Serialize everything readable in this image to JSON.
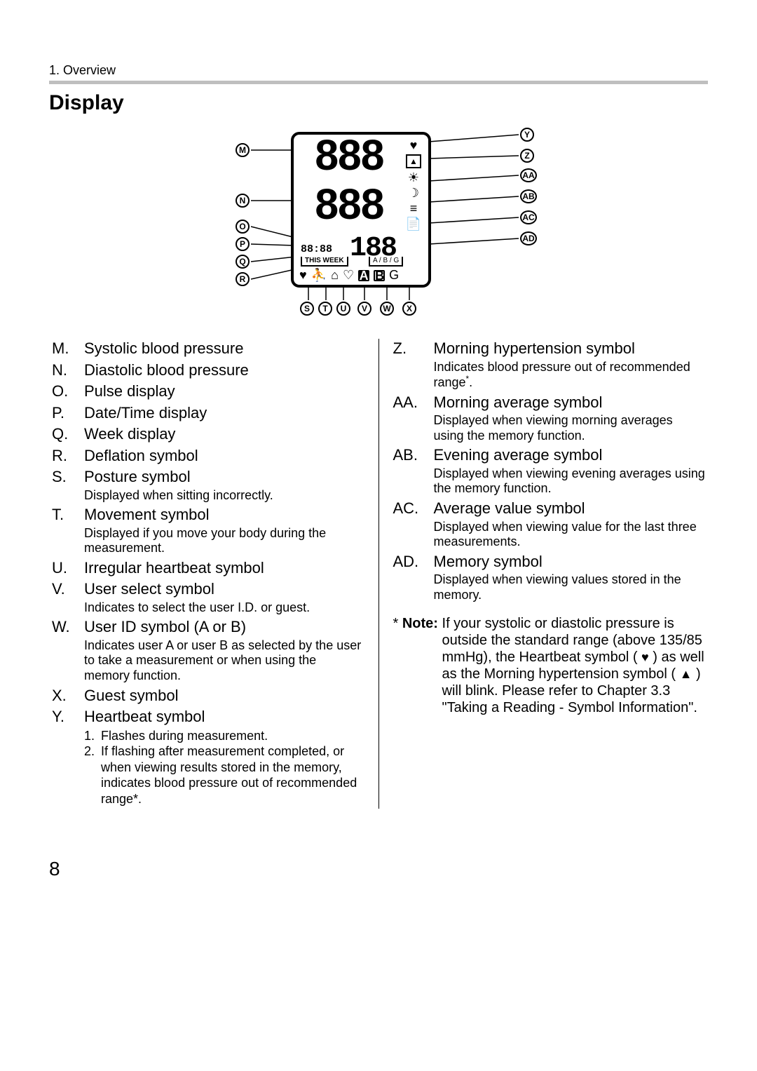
{
  "header": {
    "chapter": "1. Overview",
    "section_title": "Display"
  },
  "diagram": {
    "seg_top": "888",
    "seg_bottom": "888",
    "seg_pulse": "188",
    "date": "88:88",
    "this_week": "THIS WEEK",
    "abg": "A / B / G",
    "user_a": "A",
    "user_b": "B",
    "guest": "G",
    "labels_left": [
      "M",
      "N",
      "O",
      "P",
      "Q",
      "R"
    ],
    "labels_bottom": [
      "S",
      "T",
      "U",
      "V",
      "W",
      "X"
    ],
    "labels_right": [
      "Y",
      "Z",
      "AA",
      "AB",
      "AC",
      "AD"
    ]
  },
  "legend_left": [
    {
      "id": "M.",
      "title": "Systolic blood pressure"
    },
    {
      "id": "N.",
      "title": "Diastolic blood pressure"
    },
    {
      "id": "O.",
      "title": "Pulse display"
    },
    {
      "id": "P.",
      "title": "Date/Time display"
    },
    {
      "id": "Q.",
      "title": "Week display"
    },
    {
      "id": "R.",
      "title": "Deflation symbol"
    },
    {
      "id": "S.",
      "title": "Posture symbol",
      "detail": "Displayed when sitting incorrectly."
    },
    {
      "id": "T.",
      "title": "Movement symbol",
      "detail": "Displayed if you move your body during the measurement."
    },
    {
      "id": "U.",
      "title": "Irregular heartbeat symbol"
    },
    {
      "id": "V.",
      "title": "User select symbol",
      "detail": "Indicates to select the user I.D. or guest."
    },
    {
      "id": "W.",
      "title": "User ID symbol (A or B)",
      "detail": "Indicates user A or user B as selected by the user to take a measurement or when using the memory function."
    },
    {
      "id": "X.",
      "title": "Guest symbol"
    },
    {
      "id": "Y.",
      "title": "Heartbeat symbol",
      "sublist": [
        "Flashes during measurement.",
        "If flashing after measurement completed, or when viewing results stored in the memory, indicates blood pressure out of recommended range*."
      ]
    }
  ],
  "legend_right": [
    {
      "id": "Z.",
      "title": "Morning hypertension symbol",
      "detail_html": true,
      "detail": "Indicates blood pressure out of recommended range*."
    },
    {
      "id": "AA.",
      "title": "Morning average symbol",
      "detail": "Displayed when viewing morning averages using the memory function."
    },
    {
      "id": "AB.",
      "title": "Evening average symbol",
      "detail": "Displayed when viewing evening averages using the memory function."
    },
    {
      "id": "AC.",
      "title": "Average value symbol",
      "detail": "Displayed when viewing value for the last three measurements."
    },
    {
      "id": "AD.",
      "title": "Memory symbol",
      "detail": "Displayed when viewing values stored in the memory."
    }
  ],
  "note": {
    "prefix": "* ",
    "bold": "Note:",
    "body_before": " If your systolic or diastolic pressure is outside the standard range (above 135/85 mmHg), the Heartbeat symbol ( ",
    "body_mid": " ) as well as the Morning hypertension symbol ( ",
    "body_after": " ) will blink. Please refer to Chapter 3.3 \"Taking a Reading - Symbol Information\"."
  },
  "page_number": "8"
}
